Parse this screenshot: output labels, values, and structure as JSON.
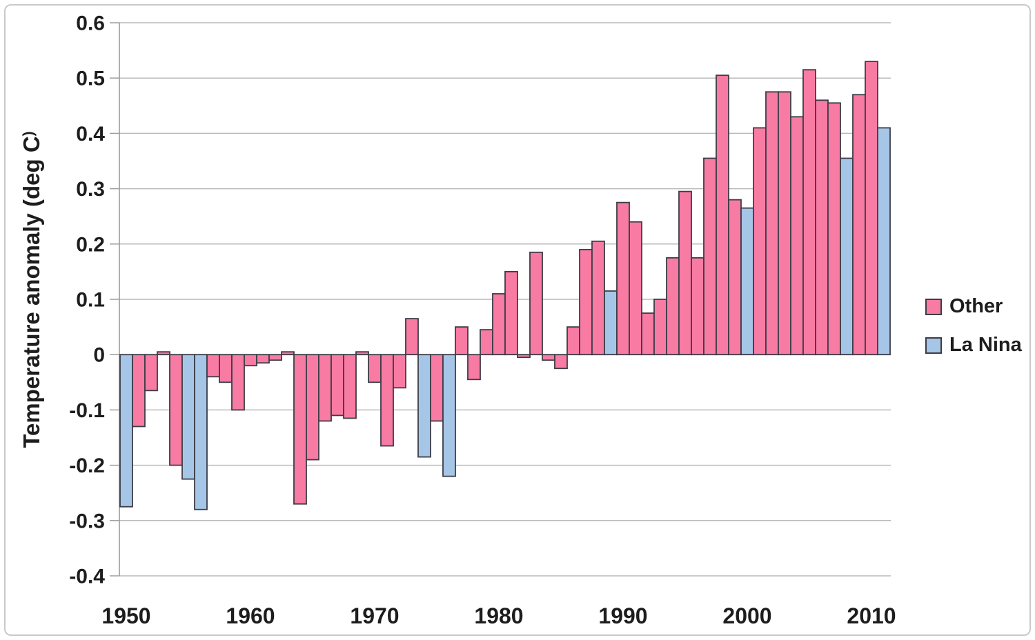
{
  "chart_data": {
    "type": "bar",
    "title": "",
    "ylabel": "Temperature anomaly (deg C)",
    "ylabel_display_main": "Temperature anomaly (deg C",
    "ylabel_display_paren": ")",
    "xlabel": "",
    "ylim": [
      -0.4,
      0.6
    ],
    "grid": true,
    "legend_position": "right-middle",
    "colors": {
      "Other": "#F87BA3",
      "La Nina": "#A6C6E8"
    },
    "bar_border_color": "#3c3c46",
    "gridline_color": "#bababa",
    "axis_color": "#9d9d9d",
    "text_color": "#1d1d1d",
    "yticks": [
      {
        "value": 0.6,
        "label": "0.6"
      },
      {
        "value": 0.5,
        "label": "0.5"
      },
      {
        "value": 0.4,
        "label": "0.4"
      },
      {
        "value": 0.3,
        "label": "0.3"
      },
      {
        "value": 0.2,
        "label": "0.2"
      },
      {
        "value": 0.1,
        "label": "0.1"
      },
      {
        "value": 0,
        "label": "0"
      },
      {
        "value": -0.1,
        "label": "-0.1"
      },
      {
        "value": -0.2,
        "label": "-0.2"
      },
      {
        "value": -0.3,
        "label": "-0.3"
      },
      {
        "value": -0.4,
        "label": "-0.4"
      }
    ],
    "xticks": [
      {
        "value": 1950,
        "label": "1950"
      },
      {
        "value": 1960,
        "label": "1960"
      },
      {
        "value": 1970,
        "label": "1970"
      },
      {
        "value": 1980,
        "label": "1980"
      },
      {
        "value": 1990,
        "label": "1990"
      },
      {
        "value": 2000,
        "label": "2000"
      },
      {
        "value": 2010,
        "label": "2010"
      }
    ],
    "legend": [
      {
        "label": "Other",
        "color": "#F87BA3"
      },
      {
        "label": "La Nina",
        "color": "#A6C6E8"
      }
    ],
    "bars": [
      {
        "year": 1950,
        "value": -0.275,
        "category": "La Nina"
      },
      {
        "year": 1951,
        "value": -0.13,
        "category": "Other"
      },
      {
        "year": 1952,
        "value": -0.065,
        "category": "Other"
      },
      {
        "year": 1953,
        "value": 0.005,
        "category": "Other"
      },
      {
        "year": 1954,
        "value": -0.2,
        "category": "Other"
      },
      {
        "year": 1955,
        "value": -0.225,
        "category": "La Nina"
      },
      {
        "year": 1956,
        "value": -0.28,
        "category": "La Nina"
      },
      {
        "year": 1957,
        "value": -0.04,
        "category": "Other"
      },
      {
        "year": 1958,
        "value": -0.05,
        "category": "Other"
      },
      {
        "year": 1959,
        "value": -0.1,
        "category": "Other"
      },
      {
        "year": 1960,
        "value": -0.02,
        "category": "Other"
      },
      {
        "year": 1961,
        "value": -0.015,
        "category": "Other"
      },
      {
        "year": 1962,
        "value": -0.01,
        "category": "Other"
      },
      {
        "year": 1963,
        "value": 0.005,
        "category": "Other"
      },
      {
        "year": 1964,
        "value": -0.27,
        "category": "Other"
      },
      {
        "year": 1965,
        "value": -0.19,
        "category": "Other"
      },
      {
        "year": 1966,
        "value": -0.12,
        "category": "Other"
      },
      {
        "year": 1967,
        "value": -0.11,
        "category": "Other"
      },
      {
        "year": 1968,
        "value": -0.115,
        "category": "Other"
      },
      {
        "year": 1969,
        "value": 0.005,
        "category": "Other"
      },
      {
        "year": 1970,
        "value": -0.05,
        "category": "Other"
      },
      {
        "year": 1971,
        "value": -0.165,
        "category": "Other"
      },
      {
        "year": 1972,
        "value": -0.06,
        "category": "Other"
      },
      {
        "year": 1973,
        "value": 0.065,
        "category": "Other"
      },
      {
        "year": 1974,
        "value": -0.185,
        "category": "La Nina"
      },
      {
        "year": 1975,
        "value": -0.12,
        "category": "Other"
      },
      {
        "year": 1976,
        "value": -0.22,
        "category": "La Nina"
      },
      {
        "year": 1977,
        "value": 0.05,
        "category": "Other"
      },
      {
        "year": 1978,
        "value": -0.045,
        "category": "Other"
      },
      {
        "year": 1979,
        "value": 0.045,
        "category": "Other"
      },
      {
        "year": 1980,
        "value": 0.11,
        "category": "Other"
      },
      {
        "year": 1981,
        "value": 0.15,
        "category": "Other"
      },
      {
        "year": 1982,
        "value": -0.005,
        "category": "Other"
      },
      {
        "year": 1983,
        "value": 0.185,
        "category": "Other"
      },
      {
        "year": 1984,
        "value": -0.01,
        "category": "Other"
      },
      {
        "year": 1985,
        "value": -0.025,
        "category": "Other"
      },
      {
        "year": 1986,
        "value": 0.05,
        "category": "Other"
      },
      {
        "year": 1987,
        "value": 0.19,
        "category": "Other"
      },
      {
        "year": 1988,
        "value": 0.205,
        "category": "Other"
      },
      {
        "year": 1989,
        "value": 0.115,
        "category": "La Nina"
      },
      {
        "year": 1990,
        "value": 0.275,
        "category": "Other"
      },
      {
        "year": 1991,
        "value": 0.24,
        "category": "Other"
      },
      {
        "year": 1992,
        "value": 0.075,
        "category": "Other"
      },
      {
        "year": 1993,
        "value": 0.1,
        "category": "Other"
      },
      {
        "year": 1994,
        "value": 0.175,
        "category": "Other"
      },
      {
        "year": 1995,
        "value": 0.295,
        "category": "Other"
      },
      {
        "year": 1996,
        "value": 0.175,
        "category": "Other"
      },
      {
        "year": 1997,
        "value": 0.355,
        "category": "Other"
      },
      {
        "year": 1998,
        "value": 0.505,
        "category": "Other"
      },
      {
        "year": 1999,
        "value": 0.28,
        "category": "Other"
      },
      {
        "year": 2000,
        "value": 0.265,
        "category": "La Nina"
      },
      {
        "year": 2001,
        "value": 0.41,
        "category": "Other"
      },
      {
        "year": 2002,
        "value": 0.475,
        "category": "Other"
      },
      {
        "year": 2003,
        "value": 0.475,
        "category": "Other"
      },
      {
        "year": 2004,
        "value": 0.43,
        "category": "Other"
      },
      {
        "year": 2005,
        "value": 0.515,
        "category": "Other"
      },
      {
        "year": 2006,
        "value": 0.46,
        "category": "Other"
      },
      {
        "year": 2007,
        "value": 0.455,
        "category": "Other"
      },
      {
        "year": 2008,
        "value": 0.355,
        "category": "La Nina"
      },
      {
        "year": 2009,
        "value": 0.47,
        "category": "Other"
      },
      {
        "year": 2010,
        "value": 0.53,
        "category": "Other"
      },
      {
        "year": 2011,
        "value": 0.41,
        "category": "La Nina"
      }
    ]
  }
}
